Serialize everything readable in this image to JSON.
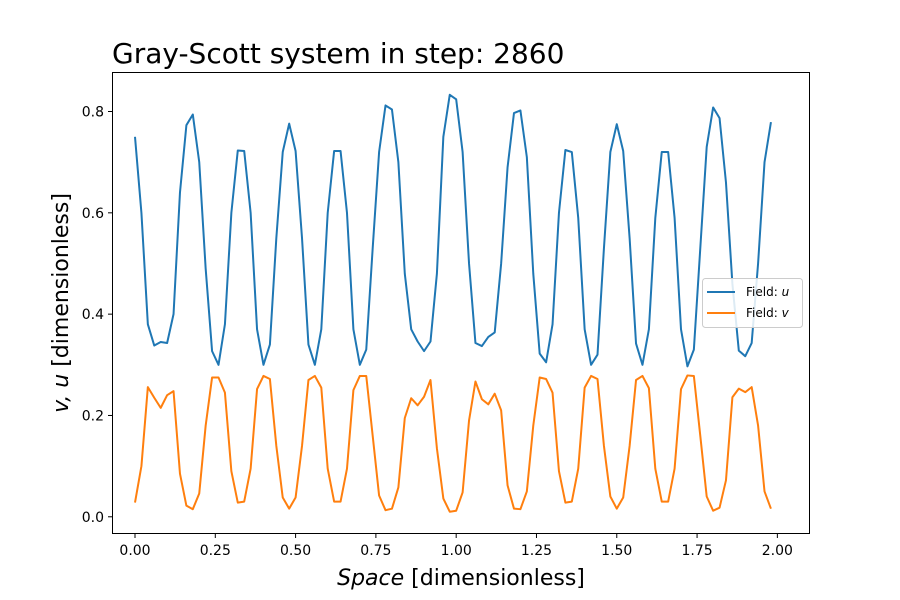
{
  "chart_data": {
    "type": "line",
    "title": "Gray-Scott system in step: 2860",
    "xlabel": {
      "italic": "Space",
      "rest": " [dimensionless]"
    },
    "ylabel": {
      "italic": "v, u",
      "rest": " [dimensionless]"
    },
    "xlim": [
      -0.0685,
      2.0985
    ],
    "ylim": [
      -0.032,
      0.876
    ],
    "xticks": [
      0.0,
      0.25,
      0.5,
      0.75,
      1.0,
      1.25,
      1.5,
      1.75,
      2.0
    ],
    "xtick_labels": [
      "0.00",
      "0.25",
      "0.50",
      "0.75",
      "1.00",
      "1.25",
      "1.50",
      "1.75",
      "2.00"
    ],
    "yticks": [
      0.0,
      0.2,
      0.4,
      0.6,
      0.8
    ],
    "ytick_labels": [
      "0.0",
      "0.2",
      "0.4",
      "0.6",
      "0.8"
    ],
    "grid": false,
    "legend_placement": "center-right",
    "series": [
      {
        "name_prefix": "Field: ",
        "name_var": "u",
        "color": "#1f77b4",
        "points": [
          [
            0.0,
            0.75
          ],
          [
            0.02,
            0.6
          ],
          [
            0.04,
            0.38
          ],
          [
            0.06,
            0.338
          ],
          [
            0.08,
            0.345
          ],
          [
            0.1,
            0.343
          ],
          [
            0.12,
            0.4
          ],
          [
            0.14,
            0.64
          ],
          [
            0.16,
            0.773
          ],
          [
            0.18,
            0.794
          ],
          [
            0.2,
            0.7
          ],
          [
            0.22,
            0.49
          ],
          [
            0.24,
            0.327
          ],
          [
            0.26,
            0.3
          ],
          [
            0.28,
            0.38
          ],
          [
            0.3,
            0.6
          ],
          [
            0.32,
            0.723
          ],
          [
            0.34,
            0.722
          ],
          [
            0.36,
            0.6
          ],
          [
            0.38,
            0.37
          ],
          [
            0.4,
            0.3
          ],
          [
            0.42,
            0.34
          ],
          [
            0.44,
            0.55
          ],
          [
            0.46,
            0.72
          ],
          [
            0.48,
            0.776
          ],
          [
            0.5,
            0.722
          ],
          [
            0.52,
            0.55
          ],
          [
            0.54,
            0.34
          ],
          [
            0.56,
            0.3
          ],
          [
            0.58,
            0.37
          ],
          [
            0.6,
            0.6
          ],
          [
            0.62,
            0.722
          ],
          [
            0.64,
            0.722
          ],
          [
            0.66,
            0.6
          ],
          [
            0.68,
            0.37
          ],
          [
            0.7,
            0.3
          ],
          [
            0.72,
            0.33
          ],
          [
            0.74,
            0.53
          ],
          [
            0.76,
            0.72
          ],
          [
            0.78,
            0.812
          ],
          [
            0.8,
            0.804
          ],
          [
            0.82,
            0.7
          ],
          [
            0.84,
            0.48
          ],
          [
            0.86,
            0.37
          ],
          [
            0.88,
            0.346
          ],
          [
            0.9,
            0.327
          ],
          [
            0.92,
            0.346
          ],
          [
            0.94,
            0.48
          ],
          [
            0.96,
            0.75
          ],
          [
            0.98,
            0.833
          ],
          [
            1.0,
            0.824
          ],
          [
            1.02,
            0.72
          ],
          [
            1.04,
            0.5
          ],
          [
            1.06,
            0.343
          ],
          [
            1.08,
            0.337
          ],
          [
            1.1,
            0.355
          ],
          [
            1.12,
            0.364
          ],
          [
            1.14,
            0.5
          ],
          [
            1.16,
            0.69
          ],
          [
            1.18,
            0.797
          ],
          [
            1.2,
            0.802
          ],
          [
            1.22,
            0.71
          ],
          [
            1.24,
            0.48
          ],
          [
            1.26,
            0.322
          ],
          [
            1.28,
            0.305
          ],
          [
            1.3,
            0.38
          ],
          [
            1.32,
            0.6
          ],
          [
            1.34,
            0.724
          ],
          [
            1.36,
            0.72
          ],
          [
            1.38,
            0.59
          ],
          [
            1.4,
            0.37
          ],
          [
            1.42,
            0.3
          ],
          [
            1.44,
            0.32
          ],
          [
            1.46,
            0.53
          ],
          [
            1.48,
            0.72
          ],
          [
            1.5,
            0.775
          ],
          [
            1.52,
            0.722
          ],
          [
            1.54,
            0.55
          ],
          [
            1.56,
            0.342
          ],
          [
            1.58,
            0.3
          ],
          [
            1.6,
            0.37
          ],
          [
            1.62,
            0.59
          ],
          [
            1.64,
            0.72
          ],
          [
            1.66,
            0.72
          ],
          [
            1.68,
            0.59
          ],
          [
            1.7,
            0.37
          ],
          [
            1.72,
            0.297
          ],
          [
            1.74,
            0.33
          ],
          [
            1.76,
            0.53
          ],
          [
            1.78,
            0.73
          ],
          [
            1.8,
            0.808
          ],
          [
            1.82,
            0.787
          ],
          [
            1.84,
            0.66
          ],
          [
            1.86,
            0.46
          ],
          [
            1.88,
            0.328
          ],
          [
            1.9,
            0.317
          ],
          [
            1.92,
            0.343
          ],
          [
            1.94,
            0.5
          ],
          [
            1.96,
            0.7
          ],
          [
            1.98,
            0.779
          ]
        ]
      },
      {
        "name_prefix": "Field: ",
        "name_var": "v",
        "color": "#ff7f0e",
        "points": [
          [
            0.0,
            0.028
          ],
          [
            0.02,
            0.1
          ],
          [
            0.04,
            0.256
          ],
          [
            0.06,
            0.235
          ],
          [
            0.08,
            0.215
          ],
          [
            0.1,
            0.24
          ],
          [
            0.12,
            0.248
          ],
          [
            0.14,
            0.085
          ],
          [
            0.16,
            0.022
          ],
          [
            0.18,
            0.015
          ],
          [
            0.2,
            0.046
          ],
          [
            0.22,
            0.18
          ],
          [
            0.24,
            0.275
          ],
          [
            0.26,
            0.275
          ],
          [
            0.28,
            0.245
          ],
          [
            0.3,
            0.09
          ],
          [
            0.32,
            0.028
          ],
          [
            0.34,
            0.03
          ],
          [
            0.36,
            0.095
          ],
          [
            0.38,
            0.252
          ],
          [
            0.4,
            0.278
          ],
          [
            0.42,
            0.272
          ],
          [
            0.44,
            0.14
          ],
          [
            0.46,
            0.038
          ],
          [
            0.48,
            0.016
          ],
          [
            0.5,
            0.038
          ],
          [
            0.52,
            0.14
          ],
          [
            0.54,
            0.27
          ],
          [
            0.56,
            0.278
          ],
          [
            0.58,
            0.255
          ],
          [
            0.6,
            0.095
          ],
          [
            0.62,
            0.03
          ],
          [
            0.64,
            0.03
          ],
          [
            0.66,
            0.095
          ],
          [
            0.68,
            0.25
          ],
          [
            0.7,
            0.278
          ],
          [
            0.72,
            0.278
          ],
          [
            0.74,
            0.16
          ],
          [
            0.76,
            0.042
          ],
          [
            0.78,
            0.013
          ],
          [
            0.8,
            0.016
          ],
          [
            0.82,
            0.058
          ],
          [
            0.84,
            0.195
          ],
          [
            0.86,
            0.234
          ],
          [
            0.88,
            0.22
          ],
          [
            0.9,
            0.237
          ],
          [
            0.92,
            0.27
          ],
          [
            0.94,
            0.135
          ],
          [
            0.96,
            0.036
          ],
          [
            0.98,
            0.01
          ],
          [
            1.0,
            0.012
          ],
          [
            1.02,
            0.048
          ],
          [
            1.04,
            0.19
          ],
          [
            1.06,
            0.267
          ],
          [
            1.08,
            0.232
          ],
          [
            1.1,
            0.222
          ],
          [
            1.12,
            0.243
          ],
          [
            1.14,
            0.21
          ],
          [
            1.16,
            0.062
          ],
          [
            1.18,
            0.016
          ],
          [
            1.2,
            0.015
          ],
          [
            1.22,
            0.05
          ],
          [
            1.24,
            0.18
          ],
          [
            1.26,
            0.275
          ],
          [
            1.28,
            0.272
          ],
          [
            1.3,
            0.245
          ],
          [
            1.32,
            0.09
          ],
          [
            1.34,
            0.028
          ],
          [
            1.36,
            0.03
          ],
          [
            1.38,
            0.095
          ],
          [
            1.4,
            0.255
          ],
          [
            1.42,
            0.278
          ],
          [
            1.44,
            0.272
          ],
          [
            1.46,
            0.14
          ],
          [
            1.48,
            0.04
          ],
          [
            1.5,
            0.016
          ],
          [
            1.52,
            0.038
          ],
          [
            1.54,
            0.14
          ],
          [
            1.56,
            0.27
          ],
          [
            1.58,
            0.278
          ],
          [
            1.6,
            0.254
          ],
          [
            1.62,
            0.095
          ],
          [
            1.64,
            0.03
          ],
          [
            1.66,
            0.03
          ],
          [
            1.68,
            0.095
          ],
          [
            1.7,
            0.252
          ],
          [
            1.72,
            0.279
          ],
          [
            1.74,
            0.278
          ],
          [
            1.76,
            0.16
          ],
          [
            1.78,
            0.04
          ],
          [
            1.8,
            0.012
          ],
          [
            1.82,
            0.018
          ],
          [
            1.84,
            0.072
          ],
          [
            1.86,
            0.236
          ],
          [
            1.88,
            0.253
          ],
          [
            1.9,
            0.246
          ],
          [
            1.92,
            0.256
          ],
          [
            1.94,
            0.18
          ],
          [
            1.96,
            0.05
          ],
          [
            1.98,
            0.016
          ]
        ]
      }
    ]
  }
}
